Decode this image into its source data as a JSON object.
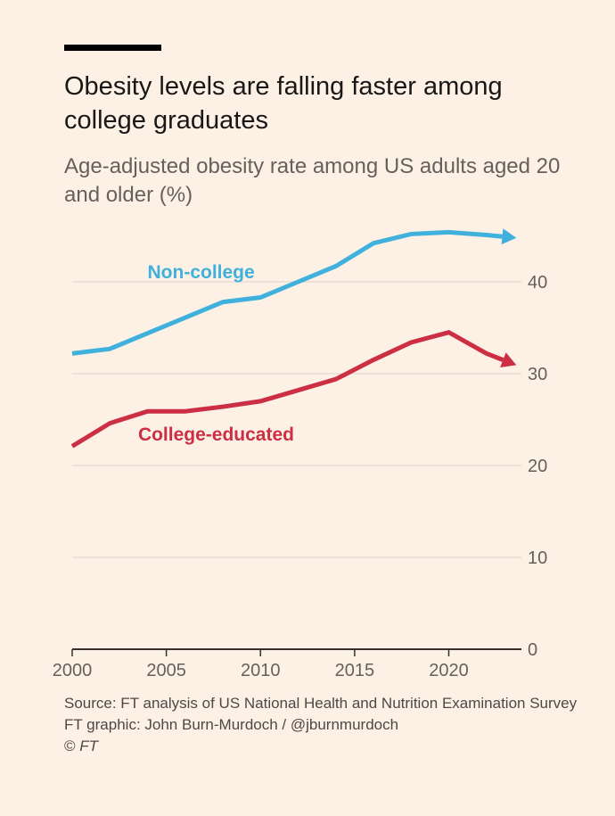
{
  "header": {
    "title": "Obesity levels are falling faster among college graduates",
    "subtitle": "Age-adjusted obesity rate among US adults aged 20 and older (%)"
  },
  "footer": {
    "source": "Source: FT analysis of US National Health and Nutrition Examination Survey",
    "credit": "FT graphic: John Burn-Murdoch / @jburnmurdoch",
    "copyright_symbol": "©",
    "copyright_owner": "FT"
  },
  "colors": {
    "background": "#fdf1e6",
    "non_college": "#3fb1dc",
    "college": "#cc2f44",
    "gridline": "#e3d9cf",
    "axis": "#33302e",
    "tick_text": "#66605c"
  },
  "chart_data": {
    "type": "line",
    "title": "Obesity levels are falling faster among college graduates",
    "subtitle": "Age-adjusted obesity rate among US adults aged 20 and older (%)",
    "xlabel": "",
    "ylabel": "",
    "xlim": [
      2000,
      2024
    ],
    "ylim": [
      0,
      45
    ],
    "x_ticks": [
      2000,
      2005,
      2010,
      2015,
      2020
    ],
    "y_ticks": [
      0,
      10,
      20,
      30,
      40
    ],
    "y_axis_side": "right",
    "grid": true,
    "series": [
      {
        "name": "Non-college",
        "color": "#3fb1dc",
        "points": [
          {
            "x": 2000,
            "y": 32.2
          },
          {
            "x": 2002,
            "y": 32.7
          },
          {
            "x": 2004,
            "y": 34.4
          },
          {
            "x": 2006,
            "y": 36.1
          },
          {
            "x": 2008,
            "y": 37.8
          },
          {
            "x": 2010,
            "y": 38.3
          },
          {
            "x": 2012,
            "y": 40.0
          },
          {
            "x": 2014,
            "y": 41.7
          },
          {
            "x": 2016,
            "y": 44.2
          },
          {
            "x": 2018,
            "y": 45.2
          },
          {
            "x": 2020,
            "y": 45.4
          },
          {
            "x": 2022,
            "y": 45.1
          },
          {
            "x": 2023.5,
            "y": 44.8
          }
        ]
      },
      {
        "name": "College-educated",
        "color": "#cc2f44",
        "points": [
          {
            "x": 2000,
            "y": 22.1
          },
          {
            "x": 2002,
            "y": 24.6
          },
          {
            "x": 2004,
            "y": 25.9
          },
          {
            "x": 2006,
            "y": 25.9
          },
          {
            "x": 2008,
            "y": 26.4
          },
          {
            "x": 2010,
            "y": 27.0
          },
          {
            "x": 2012,
            "y": 28.2
          },
          {
            "x": 2014,
            "y": 29.4
          },
          {
            "x": 2016,
            "y": 31.5
          },
          {
            "x": 2018,
            "y": 33.4
          },
          {
            "x": 2020,
            "y": 34.5
          },
          {
            "x": 2022,
            "y": 32.2
          },
          {
            "x": 2023.5,
            "y": 31.0
          }
        ]
      }
    ]
  }
}
